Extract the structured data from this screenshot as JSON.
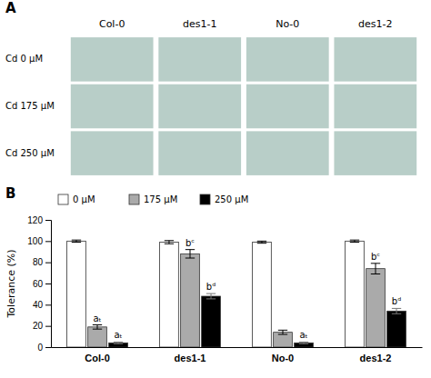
{
  "chart_data": [
    {
      "type": "image_grid",
      "title": "A",
      "categories": [
        "Col-0",
        "des1-1",
        "No-0",
        "des1-2"
      ],
      "row_labels": [
        "Cd 0 μM",
        "Cd 175 μM",
        "Cd 250 μM"
      ],
      "color": "#b8cec8"
    },
    {
      "type": "bar",
      "title": "B",
      "categories": [
        "Col-0",
        "des1-1",
        "No-0",
        "des1-2"
      ],
      "series": [
        {
          "name": "0 μM",
          "color": "white",
          "values": [
            100,
            99,
            99,
            100
          ],
          "errors": [
            1.0,
            1.5,
            1.0,
            1.0
          ]
        },
        {
          "name": "175 μM",
          "color": "#aaaaaa",
          "values": [
            19,
            88,
            14,
            74
          ],
          "errors": [
            2.0,
            4.0,
            2.0,
            5.0
          ],
          "annotations": [
            "aₜ",
            "bᶜ",
            null,
            "bᶜ"
          ]
        },
        {
          "name": "250 μM",
          "color": "black",
          "values": [
            4,
            48,
            4,
            34
          ],
          "errors": [
            0.8,
            2.5,
            0.8,
            2.5
          ],
          "annotations": [
            "aₜ",
            "bᵈ",
            "aₜ",
            "bᵈ"
          ]
        }
      ],
      "ylabel": "Tolerance (%)",
      "ylim": [
        0,
        120
      ],
      "yticks": [
        0,
        20,
        40,
        60,
        80,
        100,
        120
      ],
      "legend": "upper left",
      "grid": false
    }
  ]
}
